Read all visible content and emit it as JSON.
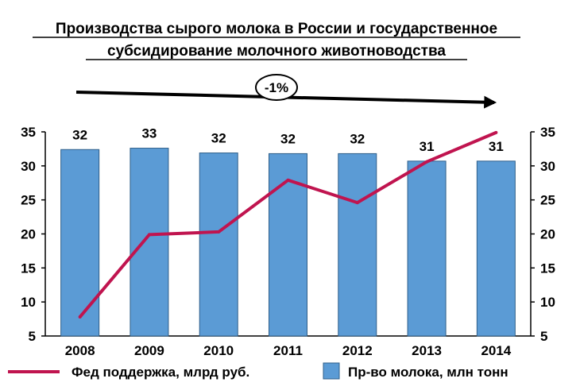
{
  "chart_data": {
    "type": "bar",
    "title_line1": "Производства сырого молока в России и государственное",
    "title_line2": "субсидирование молочного животноводства",
    "annotation": "-1%",
    "categories": [
      "2008",
      "2009",
      "2010",
      "2011",
      "2012",
      "2013",
      "2014"
    ],
    "series": [
      {
        "name": "Пр-во молока, млн тонн",
        "type": "bar",
        "axis": "left",
        "values": [
          32.4,
          32.6,
          31.9,
          31.8,
          31.8,
          30.7,
          30.7
        ],
        "labels": [
          "32",
          "33",
          "32",
          "32",
          "32",
          "31",
          "31"
        ],
        "color": "#5b9bd5"
      },
      {
        "name": "Фед поддержка, млрд руб.",
        "type": "line",
        "axis": "right",
        "values": [
          7.8,
          19.9,
          20.3,
          27.9,
          24.6,
          30.6,
          34.9
        ],
        "color": "#c0144f"
      }
    ],
    "ylim_left": [
      5,
      35
    ],
    "ylim_right": [
      5,
      35
    ],
    "yticks": [
      "35",
      "30",
      "25",
      "20",
      "15",
      "10",
      "5"
    ],
    "grid": false,
    "legend_position": "bottom"
  }
}
